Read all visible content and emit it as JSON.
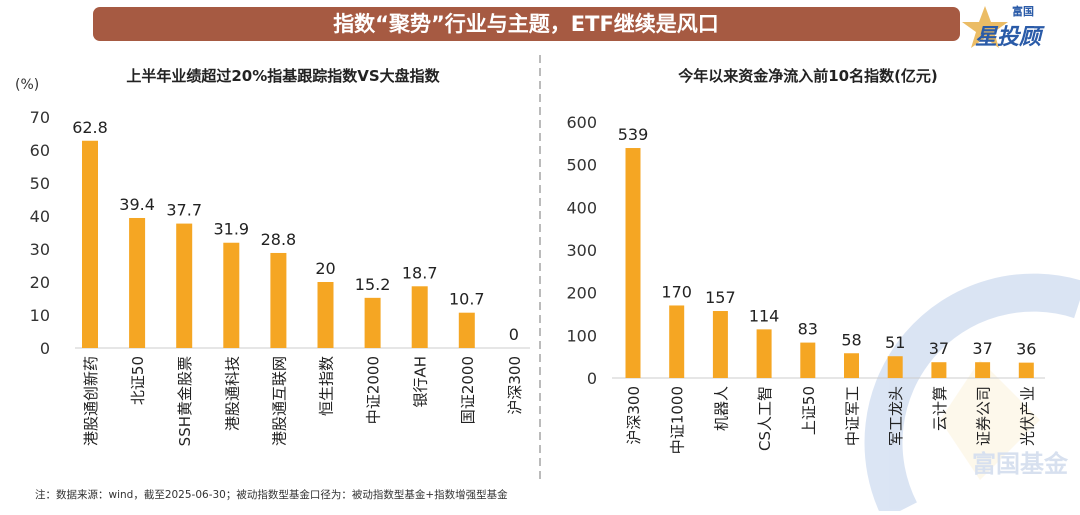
{
  "header": {
    "title": "指数“聚势”行业与主题，ETF继续是风口",
    "banner_color": "#a65a42"
  },
  "logo": {
    "top": "富国",
    "main": "星投顾",
    "star_color": "#e8b04a",
    "text_color": "#2a5ba8"
  },
  "watermark": "富国基金",
  "footnote": "注：数据来源：wind，截至2025-06-30；被动指数型基金口径为：被动指数型基金+指数增强型基金",
  "chart_data": [
    {
      "type": "bar",
      "title": "上半年业绩超过20%指基跟踪指数VS大盘指数",
      "ylabel": "(%)",
      "ylim": [
        0,
        70
      ],
      "yticks": [
        0,
        10,
        20,
        30,
        40,
        50,
        60,
        70
      ],
      "categories": [
        "港股通创新药",
        "北证50",
        "SSH黄金股票",
        "港股通科技",
        "港股通互联网",
        "恒生指数",
        "中证2000",
        "银行AH",
        "国证2000",
        "沪深300"
      ],
      "values": [
        62.8,
        39.4,
        37.7,
        31.9,
        28.8,
        20,
        15.2,
        18.7,
        10.7,
        0
      ],
      "bar_color": "#f5a623",
      "grid": false
    },
    {
      "type": "bar",
      "title": "今年以来资金净流入前10名指数(亿元)",
      "ylabel": "",
      "ylim": [
        0,
        600
      ],
      "yticks": [
        0,
        100,
        200,
        300,
        400,
        500,
        600
      ],
      "categories": [
        "沪深300",
        "中证1000",
        "机器人",
        "CS人工智",
        "上证50",
        "中证军工",
        "军工龙头",
        "云计算",
        "证券公司",
        "光伏产业"
      ],
      "values": [
        539,
        170,
        157,
        114,
        83,
        58,
        51,
        37,
        37,
        36
      ],
      "bar_color": "#f5a623",
      "grid": false
    }
  ]
}
